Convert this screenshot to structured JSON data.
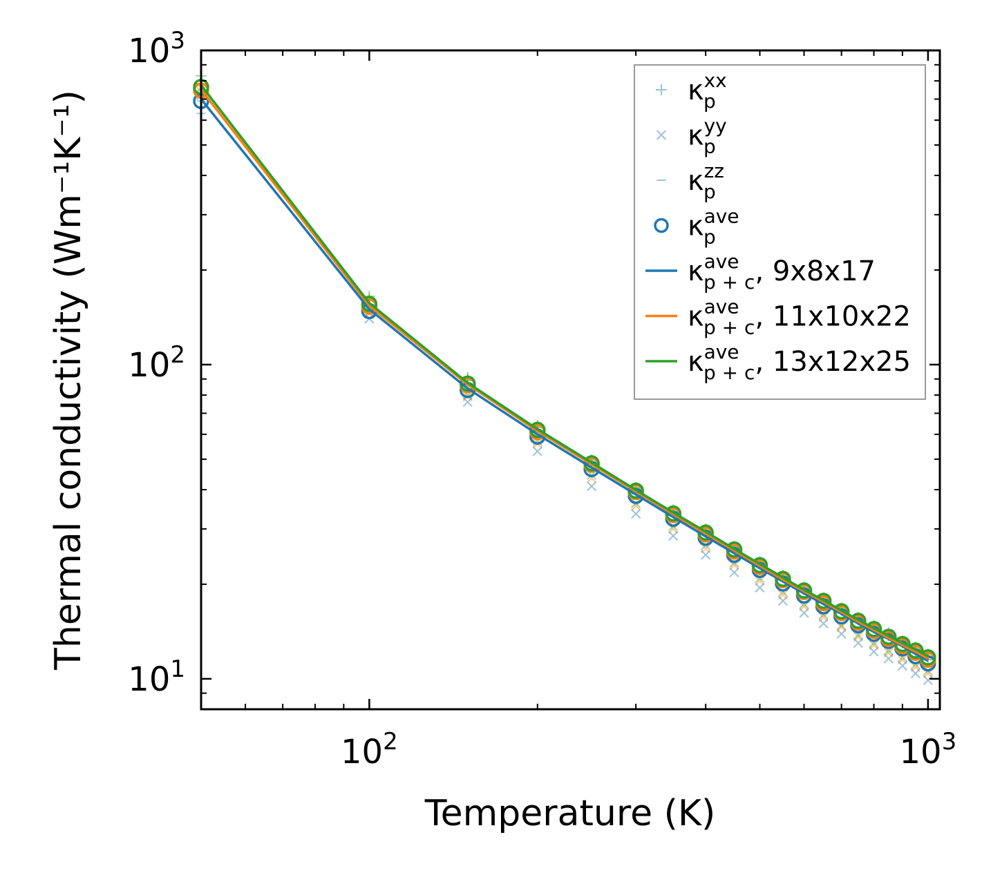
{
  "chart_data": {
    "type": "line",
    "xscale": "log",
    "yscale": "log",
    "xlabel": "Temperature (K)",
    "ylabel": "Thermal conductivity (Wm⁻¹K⁻¹)",
    "xlim": [
      50,
      1050
    ],
    "ylim": [
      8,
      1000
    ],
    "x_tick_labels": [
      {
        "value": 100,
        "base": "10",
        "exp": "2"
      },
      {
        "value": 1000,
        "base": "10",
        "exp": "3"
      }
    ],
    "y_tick_labels": [
      {
        "value": 10,
        "base": "10",
        "exp": "1"
      },
      {
        "value": 100,
        "base": "10",
        "exp": "2"
      },
      {
        "value": 1000,
        "base": "10",
        "exp": "3"
      }
    ],
    "x": [
      50,
      100,
      150,
      200,
      250,
      300,
      350,
      400,
      450,
      500,
      550,
      600,
      650,
      700,
      750,
      800,
      850,
      900,
      950,
      1000
    ],
    "legend_position": "upper-right",
    "colors": {
      "blue": "#1f77b4",
      "orange": "#ff7f0e",
      "green": "#2ca02c"
    },
    "series": [
      {
        "name": "κ_p^xx (9x8x17)",
        "kind": "marker",
        "marker": "plus",
        "color": "#1f77b4",
        "values": [
          780,
          160,
          89,
          63,
          49,
          40,
          34,
          29.5,
          26,
          23.2,
          21,
          19.2,
          17.8,
          16.5,
          15.4,
          14.5,
          13.7,
          13,
          12.3,
          11.7
        ]
      },
      {
        "name": "κ_p^xx (11x10x22)",
        "kind": "marker",
        "marker": "plus",
        "color": "#ff7f0e",
        "values": [
          800,
          162,
          90,
          63.5,
          49.4,
          40.3,
          34.2,
          29.7,
          26.2,
          23.4,
          21.2,
          19.4,
          17.9,
          16.6,
          15.5,
          14.6,
          13.8,
          13.1,
          12.4,
          11.8
        ]
      },
      {
        "name": "κ_p^xx (13x12x25)",
        "kind": "marker",
        "marker": "plus",
        "color": "#2ca02c",
        "values": [
          830,
          165,
          91,
          64,
          49.8,
          40.6,
          34.5,
          30,
          26.4,
          23.6,
          21.4,
          19.6,
          18.1,
          16.8,
          15.7,
          14.8,
          14,
          13.2,
          12.6,
          12
        ]
      },
      {
        "name": "κ_p^yy (9x8x17)",
        "kind": "marker",
        "marker": "x",
        "color": "#1f77b4",
        "values": [
          720,
          140,
          76,
          53,
          41,
          33.5,
          28.5,
          24.8,
          21.8,
          19.5,
          17.7,
          16.2,
          15,
          13.9,
          13,
          12.2,
          11.6,
          11,
          10.4,
          9.9
        ]
      },
      {
        "name": "κ_p^yy (11x10x22)",
        "kind": "marker",
        "marker": "x",
        "color": "#ff7f0e",
        "values": [
          740,
          145,
          79,
          56,
          43.5,
          35.5,
          30,
          26,
          23,
          20.5,
          18.5,
          17,
          15.7,
          14.6,
          13.6,
          12.8,
          12.1,
          11.5,
          10.9,
          10.4
        ]
      },
      {
        "name": "κ_p^yy (13x12x25)",
        "kind": "marker",
        "marker": "x",
        "color": "#2ca02c",
        "values": [
          760,
          147,
          80,
          57,
          44.5,
          36.2,
          30.6,
          26.6,
          23.4,
          20.9,
          18.9,
          17.3,
          16,
          14.8,
          13.8,
          13,
          12.3,
          11.7,
          11.1,
          10.6
        ]
      },
      {
        "name": "κ_p^zz (9x8x17)",
        "kind": "marker",
        "marker": "dash",
        "color": "#1f77b4",
        "values": [
          630,
          148,
          84,
          60,
          47,
          38.8,
          33,
          28.7,
          25.4,
          22.8,
          20.6,
          18.9,
          17.5,
          16.2,
          15.2,
          14.3,
          13.5,
          12.8,
          12.1,
          11.5
        ]
      },
      {
        "name": "κ_p^zz (11x10x22)",
        "kind": "marker",
        "marker": "dash",
        "color": "#ff7f0e",
        "values": [
          660,
          151,
          85,
          61,
          47.6,
          39.2,
          33.3,
          29,
          25.6,
          23,
          20.8,
          19.1,
          17.6,
          16.4,
          15.3,
          14.4,
          13.6,
          12.9,
          12.2,
          11.6
        ]
      },
      {
        "name": "κ_p^zz (13x12x25)",
        "kind": "marker",
        "marker": "dash",
        "color": "#2ca02c",
        "values": [
          690,
          153,
          86,
          61.5,
          48,
          39.5,
          33.6,
          29.2,
          25.8,
          23.2,
          21,
          19.3,
          17.8,
          16.5,
          15.4,
          14.5,
          13.7,
          13,
          12.3,
          11.7
        ]
      },
      {
        "name": "κ_p^ave (9x8x17)",
        "kind": "marker",
        "marker": "circle",
        "color": "#1f77b4",
        "values": [
          690,
          148,
          83,
          59,
          46.5,
          38.2,
          32.3,
          28.1,
          24.8,
          22.2,
          20.1,
          18.4,
          17,
          15.8,
          14.8,
          13.9,
          13.2,
          12.5,
          11.8,
          11.2
        ]
      },
      {
        "name": "κ_p^ave (11x10x22)",
        "kind": "marker",
        "marker": "circle",
        "color": "#ff7f0e",
        "values": [
          745,
          153,
          86,
          61,
          48,
          39.3,
          33.2,
          28.8,
          25.4,
          22.7,
          20.6,
          18.9,
          17.4,
          16.2,
          15.1,
          14.2,
          13.4,
          12.7,
          12.1,
          11.5
        ]
      },
      {
        "name": "κ_p^ave (13x12x25)",
        "kind": "marker",
        "marker": "circle",
        "color": "#2ca02c",
        "values": [
          765,
          156,
          87,
          62,
          48.5,
          39.7,
          33.6,
          29.2,
          25.8,
          23,
          20.8,
          19.1,
          17.7,
          16.4,
          15.3,
          14.4,
          13.6,
          12.9,
          12.3,
          11.7
        ]
      },
      {
        "name": "κ_p+c^ave, 9x8x17",
        "kind": "line",
        "color": "#1f77b4",
        "values": [
          700,
          150,
          84,
          60,
          47,
          38.6,
          32.7,
          28.4,
          25.1,
          22.5,
          20.4,
          18.7,
          17.3,
          16.1,
          15,
          14.1,
          13.4,
          12.7,
          12,
          11.4
        ]
      },
      {
        "name": "κ_p+c^ave, 11x10x22",
        "kind": "line",
        "color": "#ff7f0e",
        "values": [
          750,
          154,
          86.5,
          61.5,
          48.2,
          39.5,
          33.4,
          29,
          25.6,
          22.9,
          20.7,
          19,
          17.6,
          16.3,
          15.2,
          14.3,
          13.5,
          12.8,
          12.2,
          11.6
        ]
      },
      {
        "name": "κ_p+c^ave, 13x12x25",
        "kind": "line",
        "color": "#2ca02c",
        "values": [
          775,
          157,
          87.5,
          62.3,
          48.8,
          39.9,
          33.8,
          29.4,
          25.9,
          23.2,
          21,
          19.2,
          17.8,
          16.5,
          15.4,
          14.5,
          13.7,
          13,
          12.4,
          11.8
        ]
      }
    ],
    "legend": [
      {
        "marker": "plus",
        "color": "#1f77b4",
        "alpha": 0.45,
        "sym": "κ",
        "sub": "p",
        "sup": "xx",
        "suffix": ""
      },
      {
        "marker": "x",
        "color": "#1f77b4",
        "alpha": 0.45,
        "sym": "κ",
        "sub": "p",
        "sup": "yy",
        "suffix": ""
      },
      {
        "marker": "dash",
        "color": "#1f77b4",
        "alpha": 0.45,
        "sym": "κ",
        "sub": "p",
        "sup": "zz",
        "suffix": ""
      },
      {
        "marker": "circle",
        "color": "#1f77b4",
        "alpha": 1,
        "sym": "κ",
        "sub": "p",
        "sup": "ave",
        "suffix": ""
      },
      {
        "marker": "line",
        "color": "#1f77b4",
        "alpha": 1,
        "sym": "κ",
        "sub": "p + c",
        "sup": "ave",
        "suffix": ", 9x8x17"
      },
      {
        "marker": "line",
        "color": "#ff7f0e",
        "alpha": 1,
        "sym": "κ",
        "sub": "p + c",
        "sup": "ave",
        "suffix": ", 11x10x22"
      },
      {
        "marker": "line",
        "color": "#2ca02c",
        "alpha": 1,
        "sym": "κ",
        "sub": "p + c",
        "sup": "ave",
        "suffix": ", 13x12x25"
      }
    ]
  }
}
